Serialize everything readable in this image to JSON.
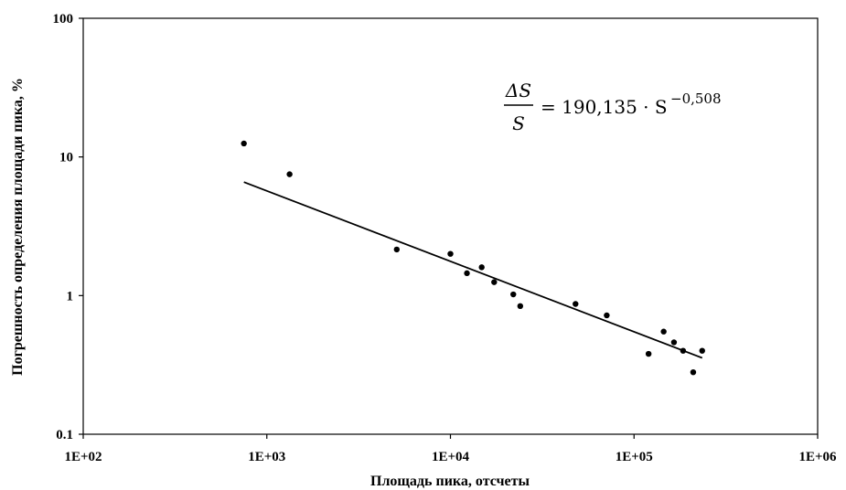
{
  "chart_data": {
    "type": "scatter",
    "x_scale": "log",
    "y_scale": "log",
    "xlim": [
      100,
      1000000
    ],
    "ylim": [
      0.1,
      100
    ],
    "x_ticks": [
      "1E+02",
      "1E+03",
      "1E+04",
      "1E+05",
      "1E+06"
    ],
    "y_ticks": [
      "0.1",
      "1",
      "10",
      "100"
    ],
    "xlabel": "Площадь   пика, отсчеты",
    "ylabel": "Погрешность определения площади   пика, %",
    "grid": false,
    "series": [
      {
        "type": "scatter",
        "points": [
          {
            "x": 750,
            "y": 12.5
          },
          {
            "x": 1330,
            "y": 7.5
          },
          {
            "x": 5100,
            "y": 2.15
          },
          {
            "x": 10000,
            "y": 2.0
          },
          {
            "x": 12300,
            "y": 1.45
          },
          {
            "x": 14800,
            "y": 1.6
          },
          {
            "x": 17300,
            "y": 1.25
          },
          {
            "x": 22000,
            "y": 1.02
          },
          {
            "x": 24000,
            "y": 0.84
          },
          {
            "x": 48000,
            "y": 0.87
          },
          {
            "x": 71000,
            "y": 0.72
          },
          {
            "x": 120000,
            "y": 0.38
          },
          {
            "x": 145000,
            "y": 0.55
          },
          {
            "x": 165000,
            "y": 0.46
          },
          {
            "x": 185000,
            "y": 0.4
          },
          {
            "x": 210000,
            "y": 0.28
          },
          {
            "x": 235000,
            "y": 0.4
          }
        ]
      },
      {
        "type": "line",
        "fit": "power",
        "coefficient": 190.135,
        "exponent": -0.508,
        "x_range": [
          750,
          235000
        ]
      }
    ],
    "annotation": {
      "numerator": "ΔS",
      "denominator": "S",
      "rhs": "= 190,135 · S",
      "exponent": "−0,508"
    }
  }
}
